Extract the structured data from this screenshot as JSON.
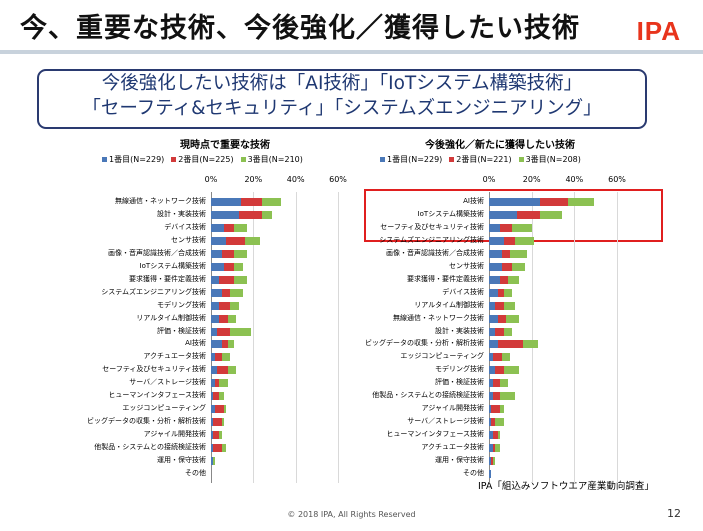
{
  "header": {
    "title": "今、重要な技術、今後強化／獲得したい技術",
    "logo": "IPA"
  },
  "callout": {
    "line1": "今後強化したい技術は「AI技術」「IoTシステム構築技術」",
    "line2": "「セーフティ&セキュリティ」「システムズエンジニアリング」"
  },
  "colors": {
    "first": "#4a78b8",
    "second": "#d23a3a",
    "third": "#8cc152",
    "highlight": "#e01f1f"
  },
  "charts": [
    {
      "title": "現時点で重要な技術",
      "legend": [
        "1番目(N=229)",
        "2番目(N=225)",
        "3番目(N=210)"
      ],
      "axis_ticks": [
        "0%",
        "20%",
        "40%",
        "60%"
      ]
    },
    {
      "title": "今後強化／新たに獲得したい技術",
      "legend": [
        "1番目(N=229)",
        "2番目(N=221)",
        "3番目(N=208)"
      ],
      "axis_ticks": [
        "0%",
        "20%",
        "40%",
        "60%"
      ]
    }
  ],
  "chart_data": [
    {
      "type": "bar",
      "title": "現時点で重要な技術",
      "orientation": "horizontal",
      "stacked": true,
      "xlim": [
        0,
        60
      ],
      "categories": [
        "無線通信・ネットワーク技術",
        "設計・実装技術",
        "デバイス技術",
        "センサ技術",
        "画像・音声認識技術／合成技術",
        "IoTシステム構築技術",
        "要求獲得・要件定義技術",
        "システムズエンジニアリング技術",
        "モデリング技術",
        "リアルタイム制御技術",
        "評価・検証技術",
        "AI技術",
        "アクチュエータ技術",
        "セーフティ及びセキュリティ技術",
        "サーバ／ストレージ技術",
        "ヒューマンインタフェース技術",
        "エッジコンピューティング",
        "ビッグデータの収集・分析・解析技術",
        "アジャイル開発技術",
        "他製品・システムとの接続検証技術",
        "運用・保守技術",
        "その他"
      ],
      "series": [
        {
          "name": "1番目(N=229)",
          "values": [
            14,
            13,
            6,
            7,
            5,
            6,
            4,
            5,
            4,
            4,
            3,
            5,
            2,
            3,
            2,
            1,
            2,
            1,
            1,
            1,
            1,
            0
          ]
        },
        {
          "name": "2番目(N=225)",
          "values": [
            10,
            11,
            5,
            9,
            6,
            5,
            7,
            4,
            5,
            4,
            6,
            3,
            3,
            5,
            2,
            3,
            4,
            4,
            3,
            4,
            0,
            0
          ]
        },
        {
          "name": "3番目(N=210)",
          "values": [
            9,
            5,
            6,
            7,
            6,
            4,
            6,
            6,
            4,
            4,
            10,
            3,
            4,
            4,
            4,
            2,
            1,
            1,
            1,
            2,
            1,
            0
          ]
        }
      ]
    },
    {
      "type": "bar",
      "title": "今後強化／新たに獲得したい技術",
      "orientation": "horizontal",
      "stacked": true,
      "xlim": [
        0,
        60
      ],
      "categories": [
        "AI技術",
        "IoTシステム構築技術",
        "セーフティ及びセキュリティ技術",
        "システムズエンジニアリング技術",
        "画像・音声認識技術／合成技術",
        "センサ技術",
        "要求獲得・要件定義技術",
        "デバイス技術",
        "リアルタイム制御技術",
        "無線通信・ネットワーク技術",
        "設計・実装技術",
        "ビッグデータの収集・分析・解析技術",
        "エッジコンピューティング",
        "モデリング技術",
        "評価・検証技術",
        "他製品・システムとの接続検証技術",
        "アジャイル開発技術",
        "サーバ／ストレージ技術",
        "ヒューマンインタフェース技術",
        "アクチュエータ技術",
        "運用・保守技術",
        "その他"
      ],
      "series": [
        {
          "name": "1番目(N=229)",
          "values": [
            24,
            13,
            5,
            7,
            6,
            6,
            5,
            4,
            3,
            4,
            3,
            4,
            2,
            3,
            2,
            2,
            1,
            1,
            2,
            2,
            1,
            1
          ]
        },
        {
          "name": "2番目(N=221)",
          "values": [
            13,
            11,
            6,
            5,
            4,
            5,
            4,
            3,
            4,
            4,
            4,
            12,
            4,
            4,
            3,
            3,
            4,
            2,
            2,
            1,
            1,
            0
          ]
        },
        {
          "name": "3番目(N=208)",
          "values": [
            12,
            10,
            9,
            9,
            8,
            6,
            5,
            4,
            5,
            6,
            4,
            7,
            4,
            7,
            4,
            7,
            2,
            4,
            1,
            2,
            1,
            0
          ]
        }
      ]
    }
  ],
  "footer": {
    "source": "IPA「組込みソフトウエア産業動向調査」",
    "copyright": "© 2018 IPA, All Rights Reserved",
    "page": "12"
  }
}
